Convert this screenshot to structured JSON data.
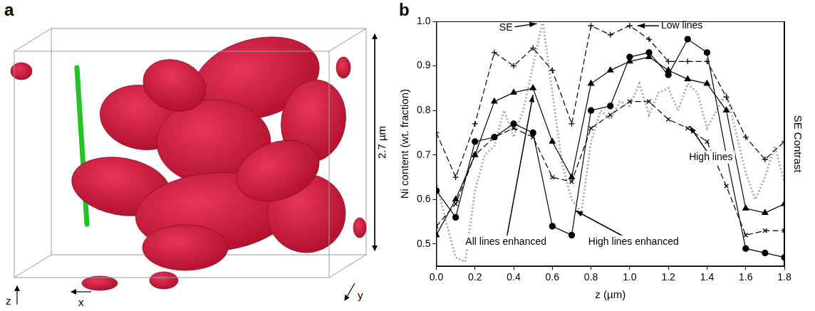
{
  "panel_a": {
    "letter": "a",
    "scale_label": "2.7 µm",
    "axis_labels": {
      "x": "x",
      "y": "y",
      "z": "z"
    }
  },
  "chart_data": {
    "type": "line",
    "letter": "b",
    "x_label": "z (µm)",
    "y_label": "Ni content (wt. fraction)",
    "y2_label": "SE Contrast",
    "xlim": [
      0,
      1.8
    ],
    "xticks": [
      {
        "value": 0,
        "label": "0.0"
      },
      0.2,
      0.4,
      0.6,
      0.8,
      {
        "value": 1,
        "label": "1.0"
      },
      1.2,
      1.4,
      1.6,
      1.8
    ],
    "ylim": [
      0.45,
      1.0
    ],
    "yticks": [
      0.5,
      0.6,
      0.7,
      0.8,
      0.9,
      {
        "value": 1,
        "label": "1.0"
      }
    ],
    "y2lim": [
      0.45,
      1.0
    ],
    "y2ticks": [],
    "grid": false,
    "series": [
      {
        "name": "Low lines",
        "color": "#000000",
        "marker": "plus",
        "line_style": "dashed",
        "x": [
          0,
          0.1,
          0.2,
          0.3,
          0.4,
          0.5,
          0.6,
          0.7,
          0.8,
          0.9,
          1.0,
          1.1,
          1.2,
          1.3,
          1.4,
          1.5,
          1.6,
          1.7,
          1.8
        ],
        "values": [
          0.75,
          0.65,
          0.77,
          0.93,
          0.9,
          0.94,
          0.89,
          0.77,
          0.99,
          0.97,
          0.99,
          0.96,
          0.91,
          0.91,
          0.91,
          0.83,
          0.74,
          0.69,
          0.73
        ]
      },
      {
        "name": "High lines",
        "color": "#000000",
        "marker": "cross",
        "line_style": "dashed",
        "x": [
          0,
          0.1,
          0.2,
          0.3,
          0.4,
          0.5,
          0.6,
          0.7,
          0.8,
          0.9,
          1.0,
          1.1,
          1.2,
          1.3,
          1.4,
          1.5,
          1.6,
          1.7,
          1.8
        ],
        "values": [
          0.54,
          0.59,
          0.7,
          0.74,
          0.76,
          0.74,
          0.65,
          0.64,
          0.76,
          0.79,
          0.82,
          0.82,
          0.78,
          0.76,
          0.73,
          0.63,
          0.52,
          0.53,
          0.53
        ]
      },
      {
        "name": "All lines enhanced",
        "color": "#000000",
        "marker": "triangle",
        "line_style": "solid",
        "x": [
          0,
          0.1,
          0.2,
          0.3,
          0.4,
          0.5,
          0.6,
          0.7,
          0.8,
          0.9,
          1.0,
          1.1,
          1.2,
          1.3,
          1.4,
          1.5,
          1.6,
          1.7,
          1.8
        ],
        "values": [
          0.52,
          0.6,
          0.7,
          0.82,
          0.84,
          0.85,
          0.73,
          0.65,
          0.86,
          0.89,
          0.91,
          0.92,
          0.89,
          0.87,
          0.86,
          0.8,
          0.58,
          0.57,
          0.59
        ]
      },
      {
        "name": "High lines enhanced",
        "color": "#000000",
        "marker": "circle",
        "line_style": "solid",
        "x": [
          0,
          0.1,
          0.2,
          0.3,
          0.4,
          0.5,
          0.6,
          0.7,
          0.8,
          0.9,
          1.0,
          1.1,
          1.2,
          1.3,
          1.4,
          1.5,
          1.6,
          1.7,
          1.8
        ],
        "values": [
          0.62,
          0.56,
          0.73,
          0.74,
          0.77,
          0.75,
          0.54,
          0.52,
          0.8,
          0.81,
          0.92,
          0.93,
          0.88,
          0.96,
          0.93,
          0.7,
          0.49,
          0.48,
          0.47
        ]
      },
      {
        "name": "SE",
        "color": "#aaaaaa",
        "marker": "none",
        "line_style": "dotted",
        "axis": "y2",
        "x": [
          0,
          0.05,
          0.1,
          0.15,
          0.2,
          0.25,
          0.3,
          0.35,
          0.4,
          0.45,
          0.5,
          0.55,
          0.6,
          0.65,
          0.7,
          0.75,
          0.8,
          0.85,
          0.9,
          0.95,
          1.0,
          1.05,
          1.1,
          1.15,
          1.2,
          1.25,
          1.3,
          1.35,
          1.4,
          1.45,
          1.5,
          1.55,
          1.6,
          1.65,
          1.7,
          1.75,
          1.8
        ],
        "values": [
          0.64,
          0.55,
          0.47,
          0.46,
          0.62,
          0.7,
          0.72,
          0.8,
          0.74,
          0.8,
          0.9,
          1.0,
          0.84,
          0.68,
          0.6,
          0.57,
          0.73,
          0.8,
          0.78,
          0.82,
          0.81,
          0.86,
          0.79,
          0.84,
          0.85,
          0.8,
          0.86,
          0.84,
          0.76,
          0.8,
          0.84,
          0.75,
          0.66,
          0.6,
          0.65,
          0.72,
          0.64
        ]
      }
    ],
    "annotations": [
      {
        "text": "SE",
        "xy": [
          0.52,
          0.995
        ],
        "xytext": [
          0.36,
          0.985
        ]
      },
      {
        "text": "Low lines",
        "xy": [
          1.04,
          0.99
        ],
        "xytext": [
          1.27,
          0.99
        ]
      },
      {
        "text": "High lines",
        "xy": [
          1.31,
          0.765
        ],
        "xytext": [
          1.42,
          0.695
        ]
      },
      {
        "text": "All lines enhanced",
        "xy": [
          0.5,
          0.835
        ],
        "xytext": [
          0.36,
          0.505
        ]
      },
      {
        "text": "High lines enhanced",
        "xy": [
          0.72,
          0.575
        ],
        "xytext": [
          1.02,
          0.505
        ]
      }
    ]
  }
}
